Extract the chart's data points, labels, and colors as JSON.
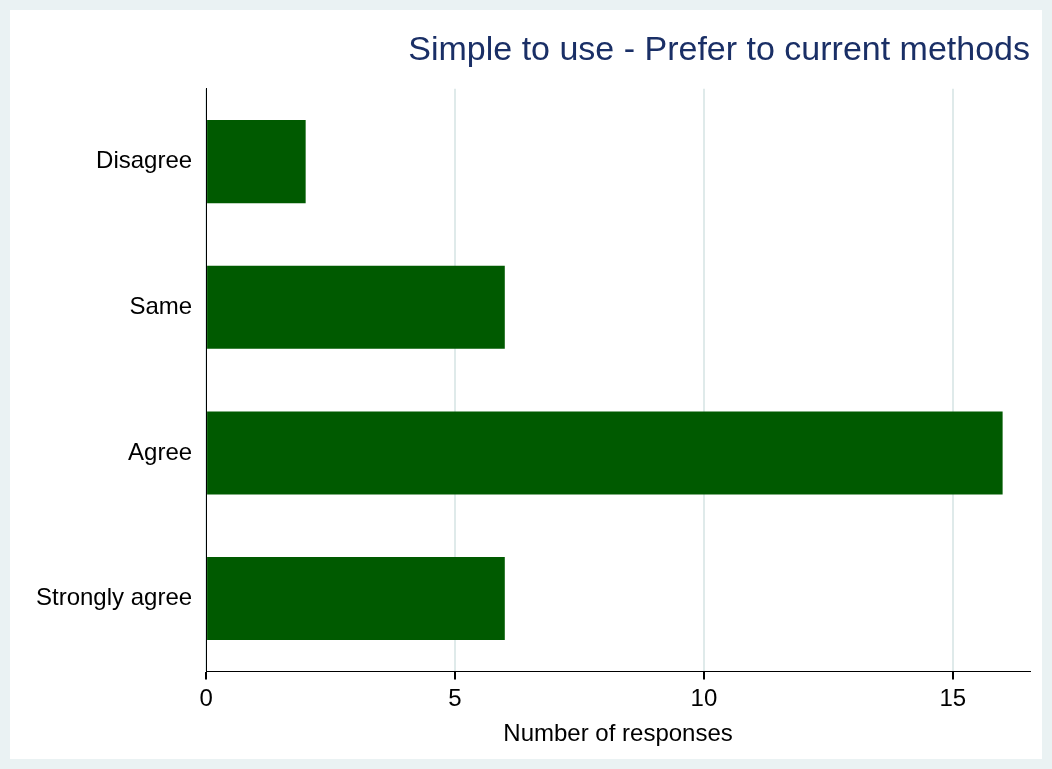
{
  "chart_data": {
    "type": "bar",
    "orientation": "horizontal",
    "title": "Simple to use - Prefer to current methods",
    "xlabel": "Number of responses",
    "categories": [
      "Disagree",
      "Same",
      "Agree",
      "Strongly agree"
    ],
    "values": [
      2,
      6,
      16,
      6
    ],
    "color": "#005a00",
    "xlim": [
      0,
      16.55
    ],
    "xticks": [
      0,
      5,
      10,
      15
    ],
    "grid": "x"
  }
}
